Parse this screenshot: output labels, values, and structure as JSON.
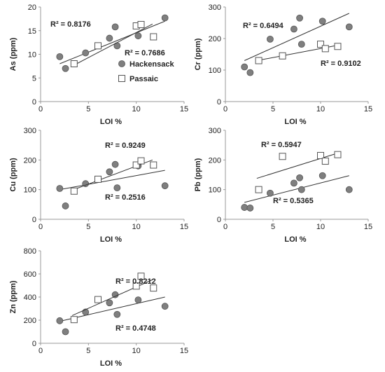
{
  "chart_data": [
    {
      "type": "scatter",
      "xlabel": "LOI %",
      "ylabel": "As (ppm)",
      "xlim": [
        0,
        15
      ],
      "ylim": [
        0,
        20
      ],
      "xticks": [
        "0",
        "5",
        "10",
        "15"
      ],
      "yticks": [
        "0",
        "5",
        "10",
        "15",
        "20"
      ],
      "legend": {
        "position": "right-middle",
        "entries": [
          "Hackensack",
          "Passaic"
        ]
      },
      "series": [
        {
          "name": "Hackensack",
          "marker": "circle",
          "x": [
            2.0,
            2.6,
            4.7,
            7.2,
            7.8,
            8.0,
            10.2,
            13.0
          ],
          "y": [
            9.5,
            7.0,
            10.3,
            13.4,
            15.8,
            11.8,
            13.9,
            17.7
          ],
          "r2": "R² = 0.8176",
          "trend": {
            "x": [
              2.0,
              13.0
            ],
            "y": [
              8.0,
              17.0
            ]
          }
        },
        {
          "name": "Passaic",
          "marker": "square",
          "x": [
            3.5,
            6.0,
            10.0,
            10.5,
            11.8
          ],
          "y": [
            8.0,
            11.8,
            16.0,
            16.3,
            13.7
          ],
          "r2": "R² = 0.7686",
          "trend": {
            "x": [
              3.3,
              11.7
            ],
            "y": [
              7.5,
              16.4
            ]
          }
        }
      ]
    },
    {
      "type": "scatter",
      "xlabel": "LOI %",
      "ylabel": "Cr (ppm)",
      "xlim": [
        0,
        15
      ],
      "ylim": [
        0,
        300
      ],
      "xticks": [
        "0",
        "5",
        "10",
        "15"
      ],
      "yticks": [
        "0",
        "100",
        "200",
        "300"
      ],
      "series": [
        {
          "name": "Hackensack",
          "marker": "circle",
          "x": [
            2.0,
            2.6,
            4.7,
            7.2,
            7.8,
            8.0,
            10.2,
            13.0
          ],
          "y": [
            110,
            92,
            198,
            230,
            265,
            182,
            255,
            237
          ],
          "r2": "R² = 0.6494",
          "trend": {
            "x": [
              2.0,
              13.0
            ],
            "y": [
              130,
              280
            ]
          }
        },
        {
          "name": "Passaic",
          "marker": "square",
          "x": [
            3.5,
            6.0,
            10.0,
            10.5,
            11.8
          ],
          "y": [
            130,
            145,
            182,
            168,
            175
          ],
          "r2": "R² = 0.9102",
          "trend": {
            "x": [
              3.3,
              11.7
            ],
            "y": [
              130,
              178
            ]
          }
        }
      ]
    },
    {
      "type": "scatter",
      "xlabel": "LOI %",
      "ylabel": "Cu (ppm)",
      "xlim": [
        0,
        15
      ],
      "ylim": [
        0,
        300
      ],
      "xticks": [
        "0",
        "5",
        "10",
        "15"
      ],
      "yticks": [
        "0",
        "100",
        "200",
        "300"
      ],
      "series": [
        {
          "name": "Hackensack",
          "marker": "circle",
          "x": [
            2.0,
            2.6,
            4.7,
            7.2,
            7.8,
            8.0,
            10.2,
            13.0
          ],
          "y": [
            104,
            45,
            120,
            160,
            185,
            106,
            180,
            113
          ],
          "r2": "R² = 0.2516",
          "trend": {
            "x": [
              2.0,
              13.0
            ],
            "y": [
              100,
              165
            ]
          }
        },
        {
          "name": "Passaic",
          "marker": "square",
          "x": [
            3.5,
            6.0,
            10.0,
            10.5,
            11.8
          ],
          "y": [
            95,
            135,
            183,
            197,
            183
          ],
          "r2": "R² = 0.9249",
          "trend": {
            "x": [
              3.3,
              11.7
            ],
            "y": [
              98,
              200
            ]
          }
        }
      ]
    },
    {
      "type": "scatter",
      "xlabel": "LOI %",
      "ylabel": "Pb (ppm)",
      "xlim": [
        0,
        15
      ],
      "ylim": [
        0,
        300
      ],
      "xticks": [
        "0",
        "5",
        "10",
        "15"
      ],
      "yticks": [
        "0",
        "100",
        "200",
        "300"
      ],
      "series": [
        {
          "name": "Hackensack",
          "marker": "circle",
          "x": [
            2.0,
            2.6,
            4.7,
            7.2,
            7.8,
            8.0,
            10.2,
            13.0
          ],
          "y": [
            40,
            38,
            88,
            122,
            140,
            100,
            147,
            100
          ],
          "r2": "R² = 0.5365",
          "trend": {
            "x": [
              2.0,
              13.0
            ],
            "y": [
              57,
              147
            ]
          }
        },
        {
          "name": "Passaic",
          "marker": "square",
          "x": [
            3.5,
            6.0,
            10.0,
            10.5,
            11.8
          ],
          "y": [
            100,
            212,
            215,
            196,
            218
          ],
          "r2": "R² = 0.5947",
          "trend": {
            "x": [
              3.3,
              11.7
            ],
            "y": [
              138,
              222
            ]
          }
        }
      ]
    },
    {
      "type": "scatter",
      "xlabel": "LOI %",
      "ylabel": "Zn (ppm)",
      "xlim": [
        0,
        15
      ],
      "ylim": [
        0,
        800
      ],
      "xticks": [
        "0",
        "5",
        "10",
        "15"
      ],
      "yticks": [
        "0",
        "200",
        "400",
        "600",
        "800"
      ],
      "series": [
        {
          "name": "Hackensack",
          "marker": "circle",
          "x": [
            2.0,
            2.6,
            4.7,
            7.2,
            7.8,
            8.0,
            10.2,
            13.0
          ],
          "y": [
            195,
            100,
            270,
            350,
            420,
            250,
            375,
            320
          ],
          "r2": "R² = 0.4748",
          "trend": {
            "x": [
              2.0,
              13.0
            ],
            "y": [
              190,
              400
            ]
          }
        },
        {
          "name": "Passaic",
          "marker": "square",
          "x": [
            3.5,
            6.0,
            10.0,
            10.5,
            11.8
          ],
          "y": [
            205,
            378,
            495,
            580,
            478
          ],
          "r2": "R² = 0.8212",
          "trend": {
            "x": [
              3.3,
              11.7
            ],
            "y": [
              240,
              550
            ]
          }
        }
      ]
    }
  ]
}
